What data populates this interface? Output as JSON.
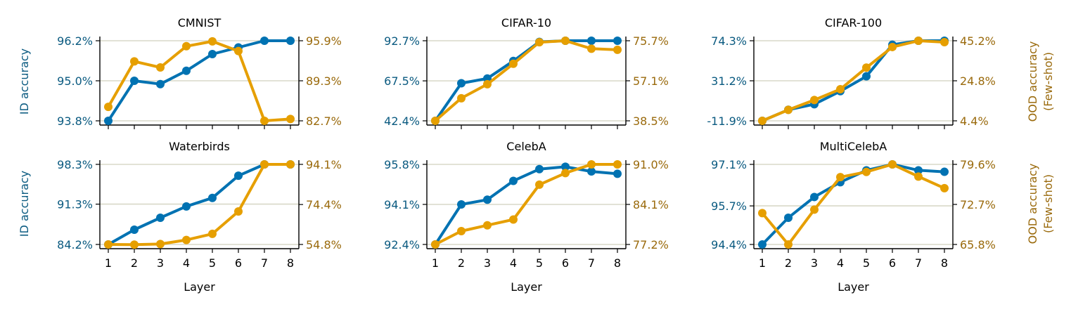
{
  "colors": {
    "id": "#0072b2",
    "ood": "#e69f00",
    "id_text": "#0a5a80",
    "ood_text": "#9a6a0c",
    "grid": "#d8d8c8"
  },
  "labels": {
    "id_ylabel": "ID accuracy",
    "ood_ylabel_1": "OOD accuracy",
    "ood_ylabel_2": "(Few-shot)",
    "xlabel": "Layer"
  },
  "chart_data": [
    {
      "type": "line",
      "title": "CMNIST",
      "x": [
        1,
        2,
        3,
        4,
        5,
        6,
        7,
        8
      ],
      "series": [
        {
          "name": "ID accuracy",
          "axis": "left",
          "values": [
            93.8,
            95.0,
            94.9,
            95.3,
            95.8,
            96.0,
            96.2,
            96.2
          ]
        },
        {
          "name": "OOD accuracy (Few-shot)",
          "axis": "right",
          "values": [
            85.0,
            92.5,
            91.5,
            95.0,
            95.8,
            94.2,
            82.7,
            83.0
          ]
        }
      ],
      "yleft": {
        "ticks": [
          93.8,
          95.0,
          96.2
        ],
        "labels": [
          "93.8%",
          "95.0%",
          "96.2%"
        ]
      },
      "yright": {
        "ticks": [
          82.7,
          89.3,
          95.9
        ],
        "labels": [
          "82.7%",
          "89.3%",
          "95.9%"
        ]
      },
      "show_xticklabels": false
    },
    {
      "type": "line",
      "title": "CIFAR-10",
      "x": [
        1,
        2,
        3,
        4,
        5,
        6,
        7,
        8
      ],
      "series": [
        {
          "name": "ID accuracy",
          "axis": "left",
          "values": [
            42.4,
            66.0,
            69.0,
            80.0,
            92.0,
            92.7,
            92.7,
            92.7
          ]
        },
        {
          "name": "OOD accuracy (Few-shot)",
          "axis": "right",
          "values": [
            38.5,
            49.0,
            55.5,
            65.0,
            75.0,
            75.7,
            72.0,
            71.5
          ]
        }
      ],
      "yleft": {
        "ticks": [
          42.4,
          67.5,
          92.7
        ],
        "labels": [
          "42.4%",
          "67.5%",
          "92.7%"
        ]
      },
      "yright": {
        "ticks": [
          38.5,
          57.1,
          75.7
        ],
        "labels": [
          "38.5%",
          "57.1%",
          "75.7%"
        ]
      },
      "show_xticklabels": false
    },
    {
      "type": "line",
      "title": "CIFAR-100",
      "x": [
        1,
        2,
        3,
        4,
        5,
        6,
        7,
        8
      ],
      "series": [
        {
          "name": "ID accuracy",
          "axis": "left",
          "values": [
            -11.9,
            0.0,
            6.0,
            20.0,
            36.0,
            70.0,
            74.3,
            74.3
          ]
        },
        {
          "name": "OOD accuracy (Few-shot)",
          "axis": "right",
          "values": [
            4.4,
            10.0,
            15.0,
            20.5,
            31.5,
            42.0,
            45.2,
            44.5
          ]
        }
      ],
      "yleft": {
        "ticks": [
          -11.9,
          31.2,
          74.3
        ],
        "labels": [
          "-11.9%",
          "31.2%",
          "74.3%"
        ]
      },
      "yright": {
        "ticks": [
          4.4,
          24.8,
          45.2
        ],
        "labels": [
          "4.4%",
          "24.8%",
          "45.2%"
        ]
      },
      "show_xticklabels": false
    },
    {
      "type": "line",
      "title": "Waterbirds",
      "x": [
        1,
        2,
        3,
        4,
        5,
        6,
        7,
        8
      ],
      "series": [
        {
          "name": "ID accuracy",
          "axis": "left",
          "values": [
            84.2,
            86.8,
            88.9,
            90.9,
            92.4,
            96.3,
            98.3,
            98.3
          ]
        },
        {
          "name": "OOD accuracy (Few-shot)",
          "axis": "right",
          "values": [
            54.8,
            54.7,
            55.0,
            57.0,
            60.0,
            71.0,
            94.1,
            94.1
          ]
        }
      ],
      "yleft": {
        "ticks": [
          84.2,
          91.3,
          98.3
        ],
        "labels": [
          "84.2%",
          "91.3%",
          "98.3%"
        ]
      },
      "yright": {
        "ticks": [
          54.8,
          74.4,
          94.1
        ],
        "labels": [
          "54.8%",
          "74.4%",
          "94.1%"
        ]
      },
      "show_xticklabels": true
    },
    {
      "type": "line",
      "title": "CelebA",
      "x": [
        1,
        2,
        3,
        4,
        5,
        6,
        7,
        8
      ],
      "series": [
        {
          "name": "ID accuracy",
          "axis": "left",
          "values": [
            92.4,
            94.1,
            94.3,
            95.1,
            95.6,
            95.7,
            95.5,
            95.4
          ]
        },
        {
          "name": "OOD accuracy (Few-shot)",
          "axis": "right",
          "values": [
            77.2,
            79.5,
            80.5,
            81.5,
            87.5,
            89.5,
            91.0,
            91.0
          ]
        }
      ],
      "yleft": {
        "ticks": [
          92.4,
          94.1,
          95.8
        ],
        "labels": [
          "92.4%",
          "94.1%",
          "95.8%"
        ]
      },
      "yright": {
        "ticks": [
          77.2,
          84.1,
          91.0
        ],
        "labels": [
          "77.2%",
          "84.1%",
          "91.0%"
        ]
      },
      "show_xticklabels": true
    },
    {
      "type": "line",
      "title": "MultiCelebA",
      "x": [
        1,
        2,
        3,
        4,
        5,
        6,
        7,
        8
      ],
      "series": [
        {
          "name": "ID accuracy",
          "axis": "left",
          "values": [
            94.4,
            95.3,
            96.0,
            96.5,
            96.9,
            97.1,
            96.9,
            96.85
          ]
        },
        {
          "name": "OOD accuracy (Few-shot)",
          "axis": "right",
          "values": [
            71.2,
            65.8,
            71.8,
            77.4,
            78.3,
            79.6,
            77.5,
            75.5
          ]
        }
      ],
      "yleft": {
        "ticks": [
          94.4,
          95.7,
          97.1
        ],
        "labels": [
          "94.4%",
          "95.7%",
          "97.1%"
        ]
      },
      "yright": {
        "ticks": [
          65.8,
          72.7,
          79.6
        ],
        "labels": [
          "65.8%",
          "72.7%",
          "79.6%"
        ]
      },
      "show_xticklabels": true
    }
  ]
}
